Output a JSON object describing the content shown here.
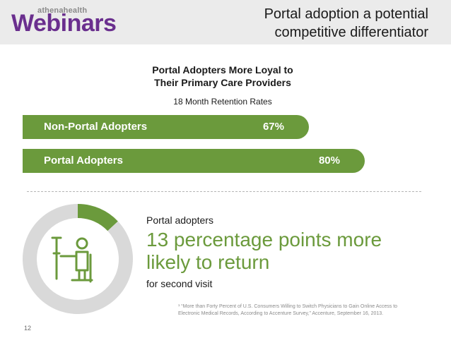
{
  "header": {
    "logo_small": "athenahealth",
    "logo_main": "Webinars",
    "title_line1": "Portal adoption a potential",
    "title_line2": "competitive differentiator",
    "background_color": "#ebebeb",
    "brand_color": "#6a2f8e"
  },
  "chart_data": {
    "type": "bar",
    "orientation": "horizontal",
    "title_line1": "Portal Adopters More Loyal to",
    "title_line2": "Their Primary Care Providers",
    "subtitle": "18 Month Retention Rates",
    "categories": [
      "Non-Portal Adopters",
      "Portal Adopters"
    ],
    "values": [
      67,
      80
    ],
    "value_labels": [
      "67%",
      "80%"
    ],
    "xlim": [
      0,
      100
    ],
    "bar_color": "#6b9a3c",
    "grid": false
  },
  "donut_chart": {
    "type": "pie",
    "values": [
      13,
      87
    ],
    "colors": [
      "#6b9a3c",
      "#d9d9d9"
    ],
    "icon": "crutch-person-icon"
  },
  "stat": {
    "intro": "Portal adopters",
    "big_line1": "13 percentage points more",
    "big_line2": "likely to return",
    "tail": "for second visit",
    "accent_color": "#6b9a3c"
  },
  "footnote": {
    "line1": "¹ “More than Forty Percent of U.S. Consumers Willing to Switch Physicians to Gain Online Access to",
    "line2": "Electronic Medical Records, According to Accenture Survey,” Accenture, September 16, 2013."
  },
  "page_number": "12"
}
